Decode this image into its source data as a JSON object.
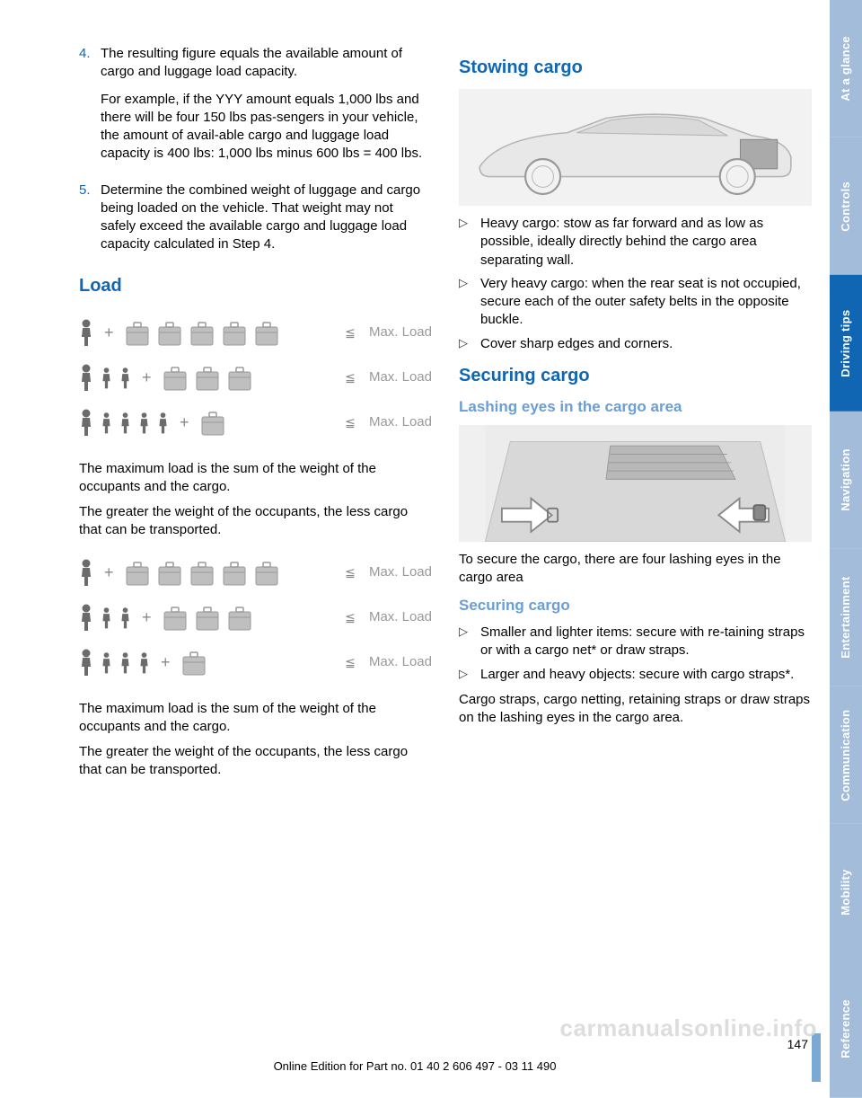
{
  "leftCol": {
    "item4": {
      "num": "4.",
      "p1": "The resulting figure equals the available amount of cargo and luggage load capacity.",
      "p2": "For example, if the YYY amount equals 1,000 lbs and there will be four 150 lbs pas‐sengers in your vehicle, the amount of avail‐able cargo and luggage load capacity is 400 lbs: 1,000 lbs minus 600 lbs = 400 lbs."
    },
    "item5": {
      "num": "5.",
      "p1": "Determine the combined weight of luggage and cargo being loaded on the vehicle. That weight may not safely exceed the available cargo and luggage load capacity calculated in Step 4."
    },
    "loadHeading": "Load",
    "diagram": {
      "maxLoad": "Max. Load",
      "rows": [
        {
          "persons": 1,
          "bags": 5
        },
        {
          "persons": 3,
          "bags": 3
        },
        {
          "persons": 5,
          "bags": 1
        }
      ],
      "rows2": [
        {
          "persons": 1,
          "bags": 5
        },
        {
          "persons": 3,
          "bags": 3
        },
        {
          "persons": 4,
          "bags": 1
        }
      ],
      "personColor": "#6b6b6b",
      "bagColor": "#bfbfbf",
      "bagStroke": "#9a9a9a"
    },
    "p1": "The maximum load is the sum of the weight of the occupants and the cargo.",
    "p2": "The greater the weight of the occupants, the less cargo that can be transported.",
    "p3": "The maximum load is the sum of the weight of the occupants and the cargo.",
    "p4": "The greater the weight of the occupants, the less cargo that can be transported."
  },
  "rightCol": {
    "h1": "Stowing cargo",
    "bullets1": [
      "Heavy cargo: stow as far forward and as low as possible, ideally directly behind the cargo area separating wall.",
      "Very heavy cargo: when the rear seat is not occupied, secure each of the outer safety belts in the opposite buckle.",
      "Cover sharp edges and corners."
    ],
    "h2": "Securing cargo",
    "h3": "Lashing eyes in the cargo area",
    "p1": "To secure the cargo, there are four lashing eyes in the cargo area",
    "h4": "Securing cargo",
    "bullets2": [
      "Smaller and lighter items: secure with re‐taining straps or with a cargo net* or draw straps.",
      "Larger and heavy objects: secure with cargo straps*."
    ],
    "p2": "Cargo straps, cargo netting, retaining straps or draw straps on the lashing eyes in the cargo area."
  },
  "tabs": [
    {
      "label": "At a glance",
      "bg": "#a3bcd9"
    },
    {
      "label": "Controls",
      "bg": "#a3bcd9"
    },
    {
      "label": "Driving tips",
      "bg": "#1066b3"
    },
    {
      "label": "Navigation",
      "bg": "#a3bcd9"
    },
    {
      "label": "Entertainment",
      "bg": "#a3bcd9"
    },
    {
      "label": "Communication",
      "bg": "#a3bcd9"
    },
    {
      "label": "Mobility",
      "bg": "#a3bcd9"
    },
    {
      "label": "Reference",
      "bg": "#a3bcd9"
    }
  ],
  "watermark": "carmanualsonline.info",
  "footer": "Online Edition for Part no. 01 40 2 606 497 - 03 11 490",
  "pageNum": "147"
}
